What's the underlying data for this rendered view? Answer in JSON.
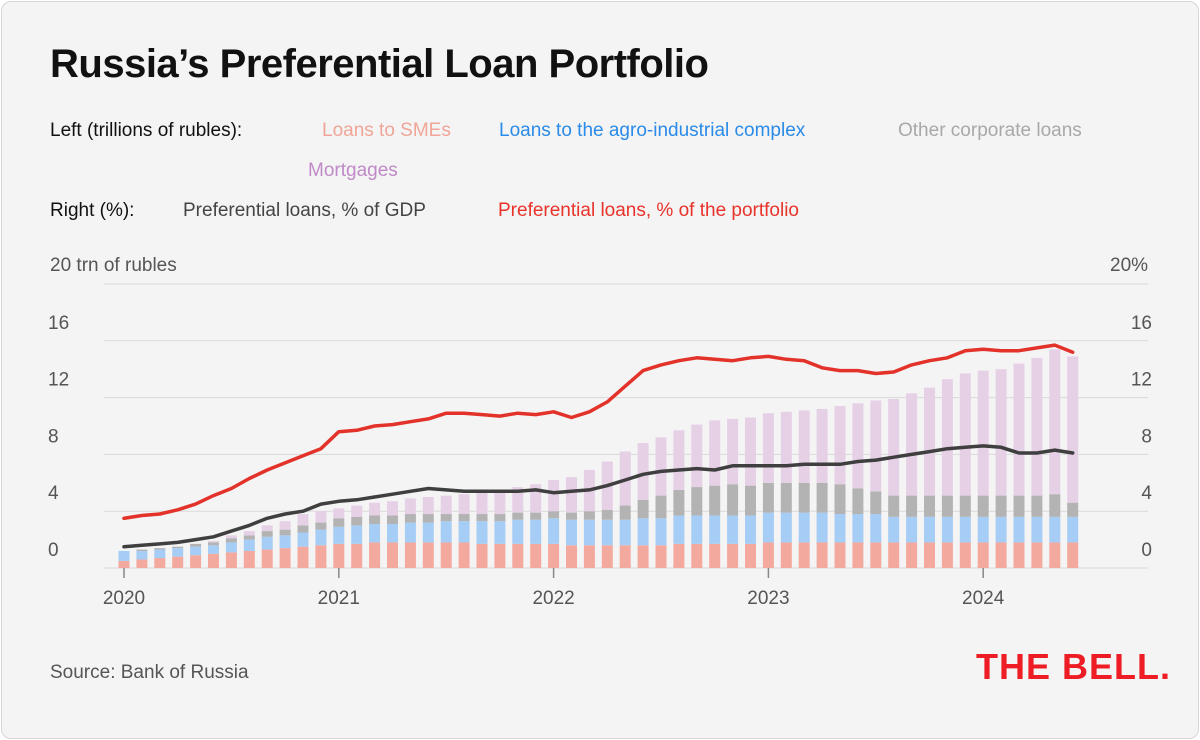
{
  "title": "Russia’s Preferential Loan Portfolio",
  "legend": {
    "left_label": "Left (trillions of rubles):",
    "right_label": "Right (%):",
    "items_left": [
      {
        "label": "Loans to SMEs",
        "color": "#f0a597"
      },
      {
        "label": "Loans to the agro-industrial complex",
        "color": "#2a8be8"
      },
      {
        "label": "Other corporate loans",
        "color": "#a8a8a8"
      },
      {
        "label": "Mortgages",
        "color": "#c08ac8"
      }
    ],
    "items_right": [
      {
        "label": "Preferential loans, % of GDP",
        "color": "#444444"
      },
      {
        "label": "Preferential loans, % of the portfolio",
        "color": "#e8332a"
      }
    ]
  },
  "axis": {
    "left_unit": "20 trn of rubles",
    "right_unit": "20%",
    "left_ticks": [
      "16",
      "12",
      "8",
      "4",
      "0"
    ],
    "right_ticks": [
      "16",
      "12",
      "8",
      "4",
      "0"
    ],
    "x_ticks": [
      "2020",
      "2021",
      "2022",
      "2023",
      "2024"
    ]
  },
  "source": "Source: Bank of Russia",
  "logo": "THE BELL.",
  "chart_data": {
    "type": "bar",
    "stacked": true,
    "x_start": "2020-01",
    "x_frequency": "monthly",
    "ylim_left": [
      0,
      20
    ],
    "ylim_right": [
      0,
      20
    ],
    "grid": true,
    "series": [
      {
        "name": "Loans to SMEs",
        "axis": "left",
        "color": "#f4a99e",
        "values": [
          0.5,
          0.6,
          0.7,
          0.8,
          0.9,
          1.0,
          1.1,
          1.2,
          1.3,
          1.4,
          1.5,
          1.6,
          1.7,
          1.7,
          1.8,
          1.8,
          1.8,
          1.8,
          1.8,
          1.8,
          1.7,
          1.7,
          1.7,
          1.7,
          1.7,
          1.6,
          1.6,
          1.6,
          1.6,
          1.6,
          1.6,
          1.7,
          1.7,
          1.7,
          1.7,
          1.7,
          1.8,
          1.8,
          1.8,
          1.8,
          1.8,
          1.8,
          1.8,
          1.8,
          1.8,
          1.8,
          1.8,
          1.8,
          1.8,
          1.8,
          1.8,
          1.8,
          1.8,
          1.8
        ]
      },
      {
        "name": "Loans to the agro-industrial complex",
        "axis": "left",
        "color": "#a6cdf5",
        "values": [
          0.7,
          0.6,
          0.6,
          0.6,
          0.6,
          0.6,
          0.7,
          0.8,
          0.9,
          0.9,
          1.0,
          1.1,
          1.2,
          1.3,
          1.3,
          1.3,
          1.4,
          1.4,
          1.5,
          1.5,
          1.6,
          1.6,
          1.7,
          1.7,
          1.8,
          1.8,
          1.8,
          1.8,
          1.8,
          1.9,
          1.9,
          2.0,
          2.0,
          2.0,
          2.0,
          2.0,
          2.1,
          2.1,
          2.1,
          2.1,
          2.0,
          2.0,
          2.0,
          1.8,
          1.8,
          1.8,
          1.8,
          1.8,
          1.8,
          1.8,
          1.8,
          1.8,
          1.8,
          1.8
        ]
      },
      {
        "name": "Other corporate loans",
        "axis": "left",
        "color": "#b3b3b3",
        "values": [
          0.0,
          0.1,
          0.1,
          0.1,
          0.2,
          0.2,
          0.3,
          0.3,
          0.4,
          0.4,
          0.5,
          0.5,
          0.6,
          0.6,
          0.6,
          0.6,
          0.6,
          0.6,
          0.5,
          0.5,
          0.5,
          0.5,
          0.5,
          0.5,
          0.5,
          0.5,
          0.6,
          0.7,
          1.0,
          1.3,
          1.6,
          1.8,
          2.0,
          2.1,
          2.2,
          2.1,
          2.1,
          2.1,
          2.1,
          2.1,
          2.1,
          1.8,
          1.6,
          1.5,
          1.5,
          1.5,
          1.5,
          1.5,
          1.5,
          1.5,
          1.5,
          1.5,
          1.6,
          1.0
        ]
      },
      {
        "name": "Mortgages",
        "axis": "left",
        "color": "#e6d0e6",
        "values": [
          0.0,
          0.0,
          0.0,
          0.0,
          0.0,
          0.1,
          0.2,
          0.3,
          0.4,
          0.6,
          0.8,
          0.8,
          0.7,
          0.8,
          0.9,
          1.0,
          1.1,
          1.2,
          1.3,
          1.4,
          1.5,
          1.7,
          1.8,
          2.0,
          2.2,
          2.5,
          2.9,
          3.4,
          3.8,
          4.0,
          4.1,
          4.2,
          4.4,
          4.6,
          4.6,
          4.8,
          4.9,
          5.0,
          5.1,
          5.2,
          5.5,
          6.0,
          6.4,
          6.8,
          7.2,
          7.6,
          8.2,
          8.6,
          8.8,
          8.9,
          9.3,
          9.7,
          10.2,
          10.3
        ]
      },
      {
        "name": "Preferential loans, % of GDP",
        "axis": "right",
        "type": "line",
        "color": "#3f3f3f",
        "values": [
          1.5,
          1.6,
          1.7,
          1.8,
          2.0,
          2.2,
          2.6,
          3.0,
          3.5,
          3.8,
          4.0,
          4.5,
          4.7,
          4.8,
          5.0,
          5.2,
          5.4,
          5.6,
          5.5,
          5.4,
          5.4,
          5.4,
          5.4,
          5.5,
          5.3,
          5.4,
          5.5,
          5.8,
          6.2,
          6.6,
          6.8,
          6.9,
          7.0,
          6.9,
          7.2,
          7.2,
          7.2,
          7.2,
          7.3,
          7.3,
          7.3,
          7.5,
          7.6,
          7.8,
          8.0,
          8.2,
          8.4,
          8.5,
          8.6,
          8.5,
          8.1,
          8.1,
          8.3,
          8.1
        ]
      },
      {
        "name": "Preferential loans, % of the portfolio",
        "axis": "right",
        "type": "line",
        "color": "#e3322a",
        "values": [
          3.5,
          3.7,
          3.8,
          4.1,
          4.5,
          5.1,
          5.6,
          6.3,
          6.9,
          7.4,
          7.9,
          8.4,
          9.6,
          9.7,
          10.0,
          10.1,
          10.3,
          10.5,
          10.9,
          10.9,
          10.8,
          10.7,
          10.9,
          10.8,
          11.0,
          10.6,
          11.0,
          11.7,
          12.8,
          13.9,
          14.3,
          14.6,
          14.8,
          14.7,
          14.6,
          14.8,
          14.9,
          14.7,
          14.6,
          14.1,
          13.9,
          13.9,
          13.7,
          13.8,
          14.3,
          14.6,
          14.8,
          15.3,
          15.4,
          15.3,
          15.3,
          15.5,
          15.7,
          15.2
        ]
      }
    ]
  }
}
